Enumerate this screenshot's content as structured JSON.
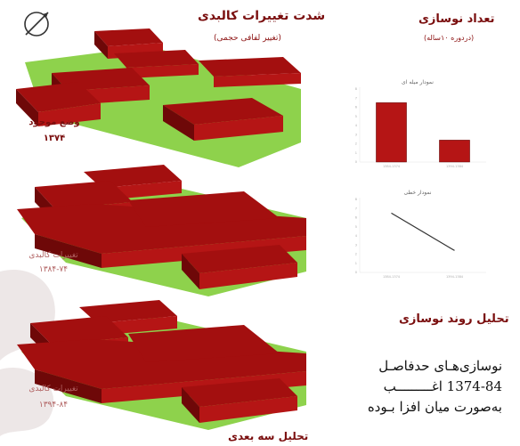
{
  "colors": {
    "block": "#b51515",
    "block_top": "#a30f0f",
    "block_side": "#6e0808",
    "ground": "#8ed24c",
    "heading": "#7a0e0e",
    "watermark": "#d9c9c9"
  },
  "icons": {
    "compass": "north-arrow-icon"
  },
  "diagram": {
    "heading": "شدت تغییرات کالبدی",
    "subheading": "(تغییر لفافی حجمی)",
    "panels": [
      {
        "label_line1": "وضع موجود",
        "label_line2": "۱۳۷۴"
      },
      {
        "label_line1": "تغییرات کالبدی",
        "label_line2": "۱۳۸۴-۷۴"
      },
      {
        "label_line1": "تغییرات کالبدی",
        "label_line2": "۱۳۹۴-۸۴"
      }
    ],
    "footer_label": "تحلیل سه بعدی"
  },
  "renewal": {
    "heading": "تعداد نوسازی",
    "subheading": "(دردوره ۱۰ساله)"
  },
  "chart_data": [
    {
      "type": "bar",
      "title": "نمودار میله ای",
      "categories": [
        "1384-1374",
        "1394-1384"
      ],
      "values": [
        6.5,
        2.4
      ],
      "ylim": [
        0,
        8
      ],
      "yticks": [
        0,
        1,
        2,
        3,
        4,
        5,
        6,
        7,
        8
      ],
      "color": "#b51515",
      "grid": false,
      "legend": "none"
    },
    {
      "type": "line",
      "title": "نمودار خطی",
      "categories": [
        "1384-1374",
        "1394-1384"
      ],
      "values": [
        6.5,
        2.4
      ],
      "ylim": [
        0,
        8
      ],
      "yticks": [
        0,
        1,
        2,
        3,
        4,
        5,
        6,
        7,
        8
      ],
      "color": "#333333",
      "grid": false,
      "legend": "none"
    }
  ],
  "analysis": {
    "heading": "تحلیل روند نوسازی",
    "lines": [
      "نوسازی‌هـای حدفاصـل",
      "1374-84 اغـــــــــب",
      "به‌صورت میان افزا بـوده"
    ]
  }
}
